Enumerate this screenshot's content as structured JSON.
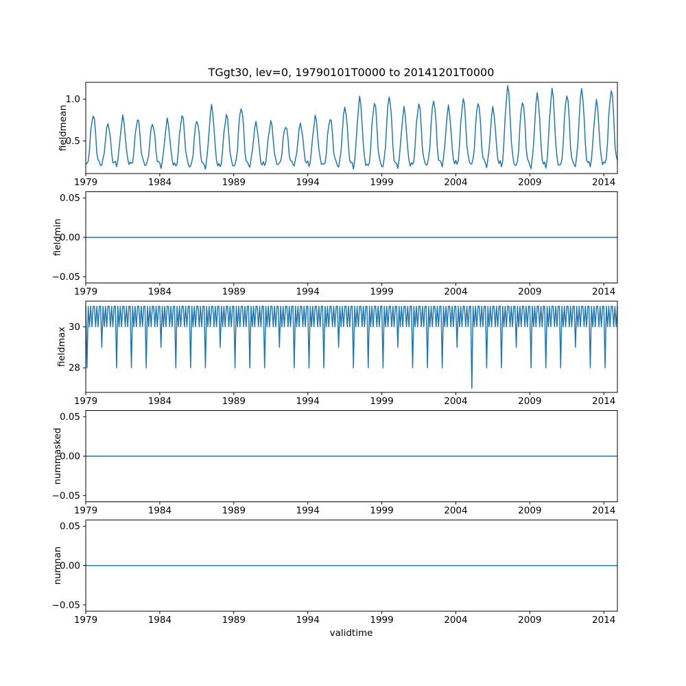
{
  "chart_data": {
    "type": "line",
    "title": "TGgt30, lev=0, 19790101T0000 to 20141201T0000",
    "xlabel": "validtime",
    "line_color": "#1f77b4",
    "legend": "none",
    "grid": false,
    "x": {
      "start_year": 1979,
      "end_year_fraction": 2014.9167,
      "months": 432,
      "ticks": [
        1979,
        1984,
        1989,
        1994,
        1999,
        2004,
        2009,
        2014
      ],
      "tick_labels": [
        "1979",
        "1984",
        "1989",
        "1994",
        "1999",
        "2004",
        "2009",
        "2014"
      ]
    },
    "subplots": [
      {
        "ylabel": "fieldmean",
        "ylim": [
          0.11,
          1.2
        ],
        "yticks": {
          "values": [
            0.5,
            1.0
          ],
          "labels": [
            "0.5",
            "1.0"
          ]
        },
        "series": {
          "kind": "seasonal",
          "description": "monthly mean with annual summer peaks, winter troughs near 0.2, rising trend after mid-1990s",
          "baseline": 0.2,
          "noise": 0.025,
          "monthly_shape": [
            0.04,
            0.0,
            0.1,
            0.3,
            0.62,
            0.85,
            1.0,
            0.9,
            0.64,
            0.3,
            0.12,
            0.05
          ],
          "annual_peaks": [
            0.82,
            0.72,
            0.8,
            0.78,
            0.72,
            0.75,
            0.8,
            0.74,
            0.9,
            0.8,
            0.9,
            0.72,
            0.74,
            0.7,
            0.72,
            0.8,
            0.78,
            0.9,
            1.0,
            0.95,
            1.02,
            0.88,
            0.95,
            1.0,
            0.92,
            1.02,
            0.98,
            0.9,
            1.15,
            0.97,
            1.05,
            1.1,
            1.05,
            1.12,
            0.98,
            1.13
          ]
        }
      },
      {
        "ylabel": "fieldmin",
        "ylim": [
          -0.058,
          0.058
        ],
        "yticks": {
          "values": [
            0.05,
            0.0,
            -0.05
          ],
          "labels": [
            "0.05",
            "0.00",
            "−0.05"
          ]
        },
        "series": {
          "kind": "flat",
          "value": 0,
          "description": "constant zero line"
        }
      },
      {
        "ylabel": "fieldmax",
        "ylim": [
          26.8,
          31.25
        ],
        "yticks": {
          "values": [
            28,
            30
          ],
          "labels": [
            "28",
            "30"
          ]
        },
        "series": {
          "kind": "month_days",
          "description": "oscillates between 30 and 31 with dips to 28/29 each February and a single deep dip to 27 around 2005",
          "month_days": [
            31,
            28,
            31,
            30,
            31,
            30,
            31,
            31,
            30,
            31,
            30,
            31
          ],
          "leap_feb": 29,
          "anomalies": [
            {
              "month_index": 313,
              "value": 27
            }
          ]
        }
      },
      {
        "ylabel": "nummasked",
        "ylim": [
          -0.058,
          0.058
        ],
        "yticks": {
          "values": [
            0.05,
            0.0,
            -0.05
          ],
          "labels": [
            "0.05",
            "0.00",
            "−0.05"
          ]
        },
        "series": {
          "kind": "flat",
          "value": 0,
          "description": "constant zero line"
        }
      },
      {
        "ylabel": "numnan",
        "ylim": [
          -0.058,
          0.058
        ],
        "yticks": {
          "values": [
            0.05,
            0.0,
            -0.05
          ],
          "labels": [
            "0.05",
            "0.00",
            "−0.05"
          ]
        },
        "series": {
          "kind": "flat",
          "value": 0,
          "description": "constant zero line"
        }
      }
    ]
  }
}
